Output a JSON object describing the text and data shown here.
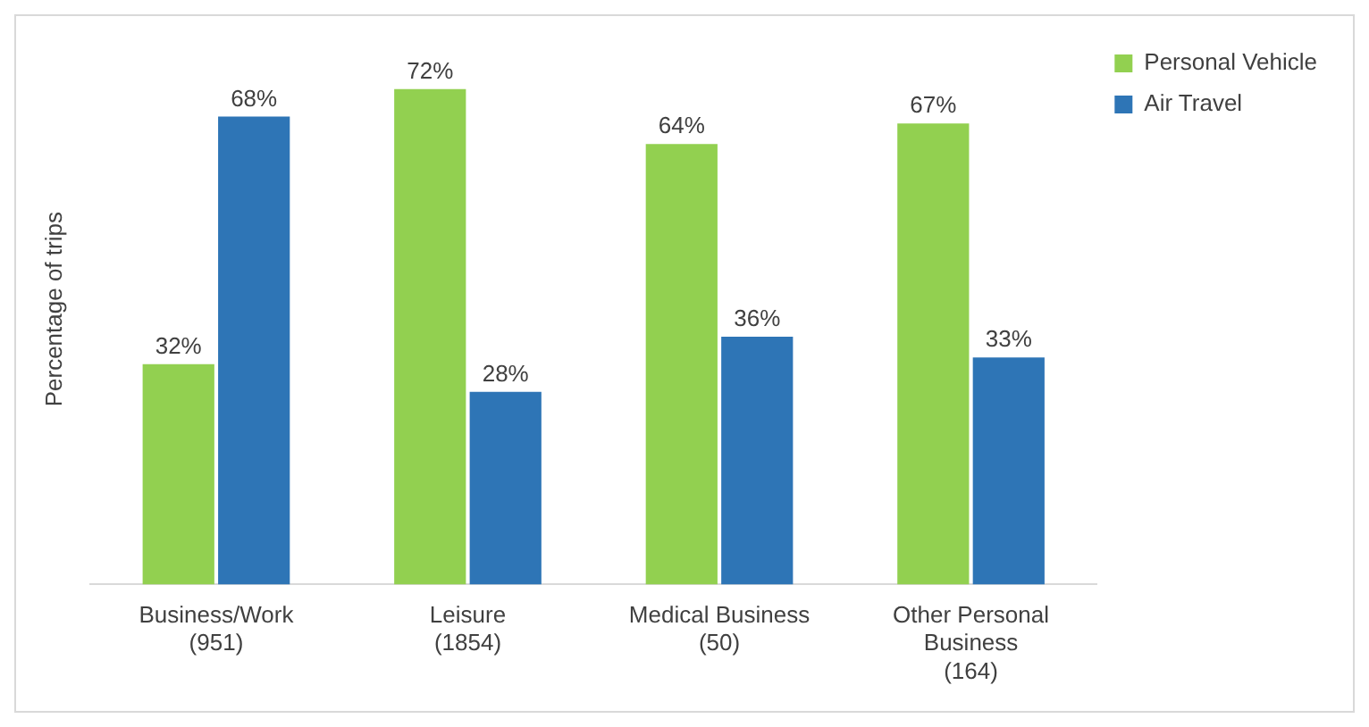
{
  "chart_data": {
    "type": "bar",
    "ylabel": "Percentage of trips",
    "categories": [
      "Business/Work\n(951)",
      "Leisure\n(1854)",
      "Medical Business\n(50)",
      "Other Personal\nBusiness\n(164)"
    ],
    "series": [
      {
        "name": "Personal Vehicle",
        "color": "#92d050",
        "values": [
          32,
          72,
          64,
          67
        ],
        "value_labels": [
          "32%",
          "72%",
          "64%",
          "67%"
        ]
      },
      {
        "name": "Air Travel",
        "color": "#2e75b6",
        "values": [
          68,
          28,
          36,
          33
        ],
        "value_labels": [
          "68%",
          "28%",
          "36%",
          "33%"
        ]
      }
    ],
    "legend": "top right",
    "grid": false
  }
}
